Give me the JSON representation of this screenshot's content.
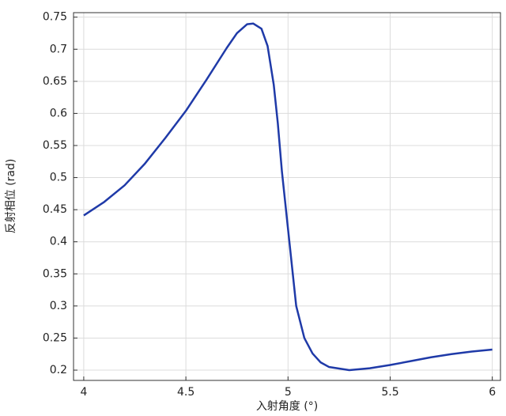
{
  "chart_data": {
    "type": "line",
    "x_label": "入射角度 (°)",
    "y_label": "反射相位 (rad)",
    "x": [
      4,
      4.1,
      4.2,
      4.3,
      4.4,
      4.5,
      4.6,
      4.7,
      4.75,
      4.8,
      4.83,
      4.87,
      4.9,
      4.93,
      4.95,
      4.97,
      5.0,
      5.04,
      5.08,
      5.12,
      5.16,
      5.2,
      5.3,
      5.4,
      5.5,
      5.6,
      5.7,
      5.8,
      5.9,
      6.0
    ],
    "values": [
      0.441,
      0.462,
      0.488,
      0.522,
      0.562,
      0.604,
      0.652,
      0.702,
      0.725,
      0.739,
      0.74,
      0.732,
      0.705,
      0.645,
      0.585,
      0.51,
      0.42,
      0.3,
      0.25,
      0.226,
      0.212,
      0.205,
      0.2,
      0.203,
      0.208,
      0.214,
      0.22,
      0.225,
      0.229,
      0.232
    ],
    "color": "#1f3aa8",
    "xlim": [
      3.95,
      6.04
    ],
    "xticks": [
      4,
      4.5,
      5,
      5.5,
      6
    ],
    "ylim": [
      0.184,
      0.757
    ],
    "yticks": [
      0.2,
      0.25,
      0.3,
      0.35,
      0.4,
      0.45,
      0.5,
      0.55,
      0.6,
      0.65,
      0.7,
      0.75
    ],
    "grid": true
  }
}
